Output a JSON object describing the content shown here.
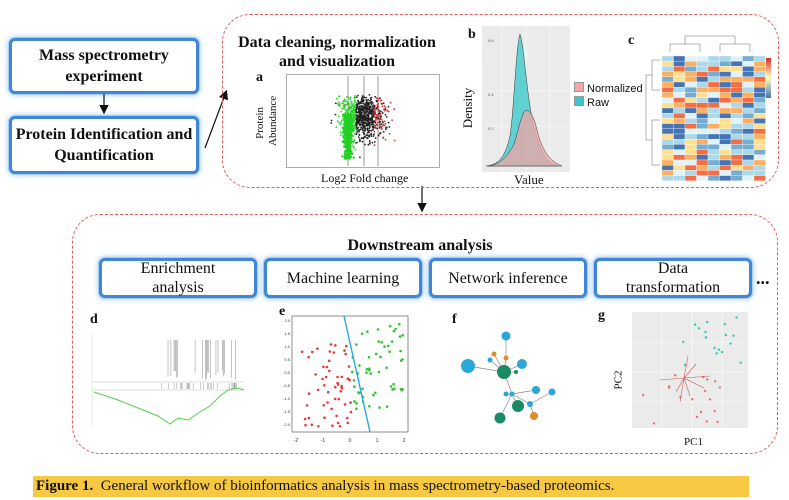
{
  "workflow": {
    "mass_spec": "Mass spectrometry experiment",
    "protein_id": "Protein Identification and Quantification"
  },
  "cleaning": {
    "heading": "Data cleaning, normalization and visualization",
    "panel_a": {
      "letter": "a",
      "ylabel": "Protein Abundance",
      "xlabel": "Log2 Fold change"
    },
    "panel_b": {
      "letter": "b",
      "ylabel": "Density",
      "xlabel": "Value",
      "legend": [
        "Normalized",
        "Raw"
      ],
      "colors": {
        "normalized": "#f4a6a6",
        "raw": "#3ec9c9"
      }
    },
    "panel_c": {
      "letter": "c"
    }
  },
  "downstream": {
    "heading": "Downstream analysis",
    "methods": [
      "Enrichment analysis",
      "Machine learning",
      "Network inference",
      "Data transformation"
    ],
    "ellipsis": "...",
    "panel_d": {
      "letter": "d"
    },
    "panel_e": {
      "letter": "e",
      "x_ticks": [
        "-2",
        "-1",
        "0",
        "1",
        "2"
      ],
      "y_ticks": [
        "2.0",
        "1.5",
        "1.0",
        "0.5",
        "0.0",
        "-0.5",
        "-1.0",
        "-1.5",
        "-2.0"
      ]
    },
    "panel_f": {
      "letter": "f"
    },
    "panel_g": {
      "letter": "g",
      "xlabel": "PC1",
      "ylabel": "PC2"
    }
  },
  "caption": {
    "label": "Figure 1.",
    "text": "General workflow of bioinformatics analysis in mass spectrometry-based proteomics."
  },
  "colors": {
    "box_border": "#3f86d6",
    "panel_border": "#e05a5a",
    "caption_bg": "#f7c842"
  }
}
